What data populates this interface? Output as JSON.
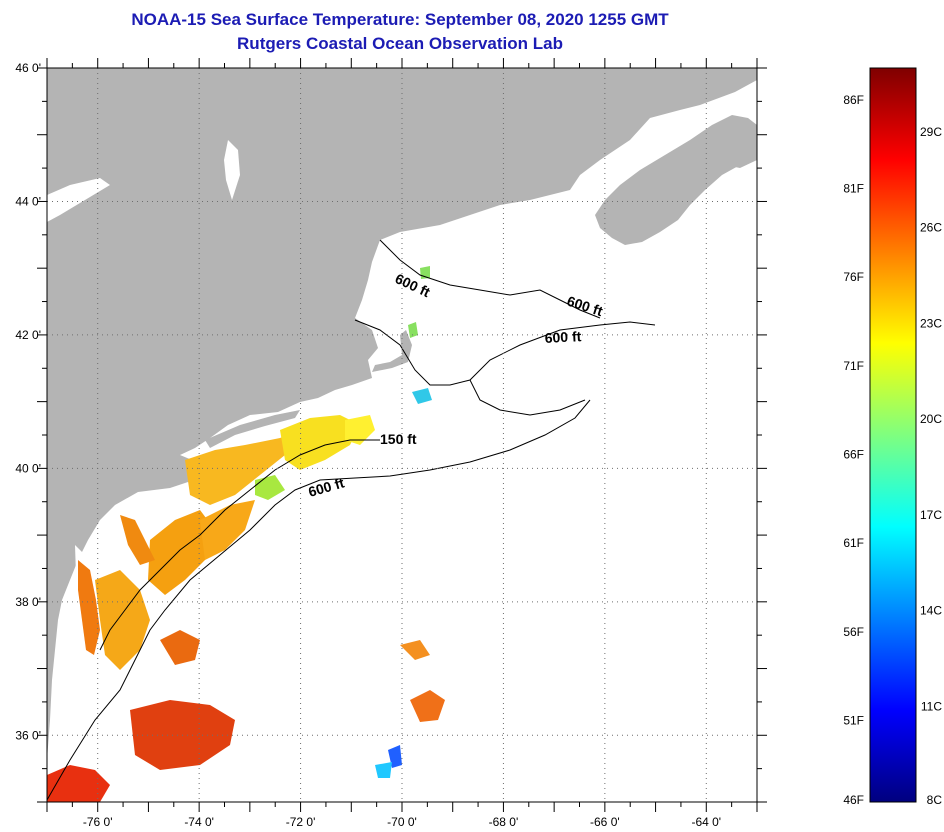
{
  "header": {
    "title": "NOAA-15 Sea Surface Temperature:  September 08, 2020 1255 GMT",
    "subtitle": "Rutgers Coastal Ocean Observation Lab"
  },
  "map": {
    "lat_ticks": [
      "46 0'",
      "44 0'",
      "42 0'",
      "40 0'",
      "38 0'",
      "36 0'"
    ],
    "lat_values": [
      46,
      44,
      42,
      40,
      38,
      36
    ],
    "lon_ticks": [
      "-76 0'",
      "-74 0'",
      "-72 0'",
      "-70 0'",
      "-68 0'",
      "-66 0'",
      "-64 0'"
    ],
    "lon_values": [
      -76,
      -74,
      -72,
      -70,
      -68,
      -66,
      -64
    ],
    "lat_range": [
      35,
      46
    ],
    "lon_range": [
      -77,
      -63
    ],
    "contour_labels": [
      "600 ft",
      "600 ft",
      "600 ft",
      "150 ft",
      "600 ft"
    ],
    "colors": {
      "land": "#b4b4b4",
      "ocean": "#ffffff"
    }
  },
  "colorbar": {
    "fahrenheit_labels": [
      "86F",
      "81F",
      "76F",
      "71F",
      "66F",
      "61F",
      "56F",
      "51F",
      "46F"
    ],
    "fahrenheit_values": [
      86,
      81,
      76,
      71,
      66,
      61,
      56,
      51,
      46
    ],
    "celsius_labels": [
      "29C",
      "26C",
      "23C",
      "20C",
      "17C",
      "14C",
      "11C",
      "8C"
    ],
    "celsius_values": [
      29,
      26,
      23,
      20,
      17,
      14,
      11,
      8
    ],
    "range_c": [
      8,
      31
    ],
    "gradient": [
      "#00007f",
      "#0000ff",
      "#007fff",
      "#00ffff",
      "#7fff7f",
      "#ffff00",
      "#ff7f00",
      "#ff0000",
      "#7f0000"
    ]
  }
}
